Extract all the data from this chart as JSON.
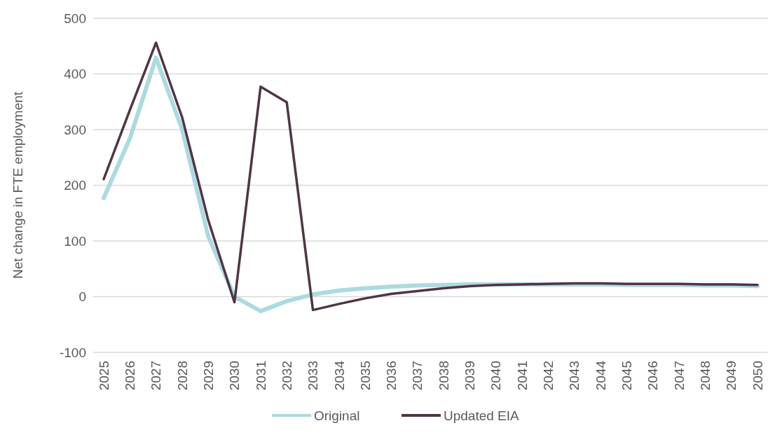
{
  "chart_data": {
    "type": "line",
    "ylabel": "Net change in FTE employment",
    "categories": [
      "2025",
      "2026",
      "2027",
      "2028",
      "2029",
      "2030",
      "2031",
      "2032",
      "2033",
      "2034",
      "2035",
      "2036",
      "2037",
      "2038",
      "2039",
      "2040",
      "2041",
      "2042",
      "2043",
      "2044",
      "2045",
      "2046",
      "2047",
      "2048",
      "2049",
      "2050"
    ],
    "series": [
      {
        "name": "Original",
        "color": "#acdae0",
        "values": [
          177,
          284,
          429,
          300,
          108,
          0,
          -26,
          -8,
          4,
          11,
          15,
          18,
          20,
          21,
          22,
          22,
          22,
          22,
          22,
          22,
          21,
          21,
          21,
          20,
          20,
          19
        ]
      },
      {
        "name": "Updated EIA",
        "color": "#4f3546",
        "values": [
          211,
          335,
          456,
          322,
          137,
          -10,
          377,
          349,
          -24,
          -13,
          -3,
          5,
          10,
          15,
          19,
          21,
          22,
          23,
          24,
          24,
          23,
          23,
          23,
          22,
          22,
          21
        ]
      }
    ],
    "ylim": [
      -100,
      500
    ],
    "yticks": [
      -100,
      0,
      100,
      200,
      300,
      400,
      500
    ],
    "grid": "y",
    "legend": "bottom",
    "line_style": "solid",
    "marker": "none"
  }
}
